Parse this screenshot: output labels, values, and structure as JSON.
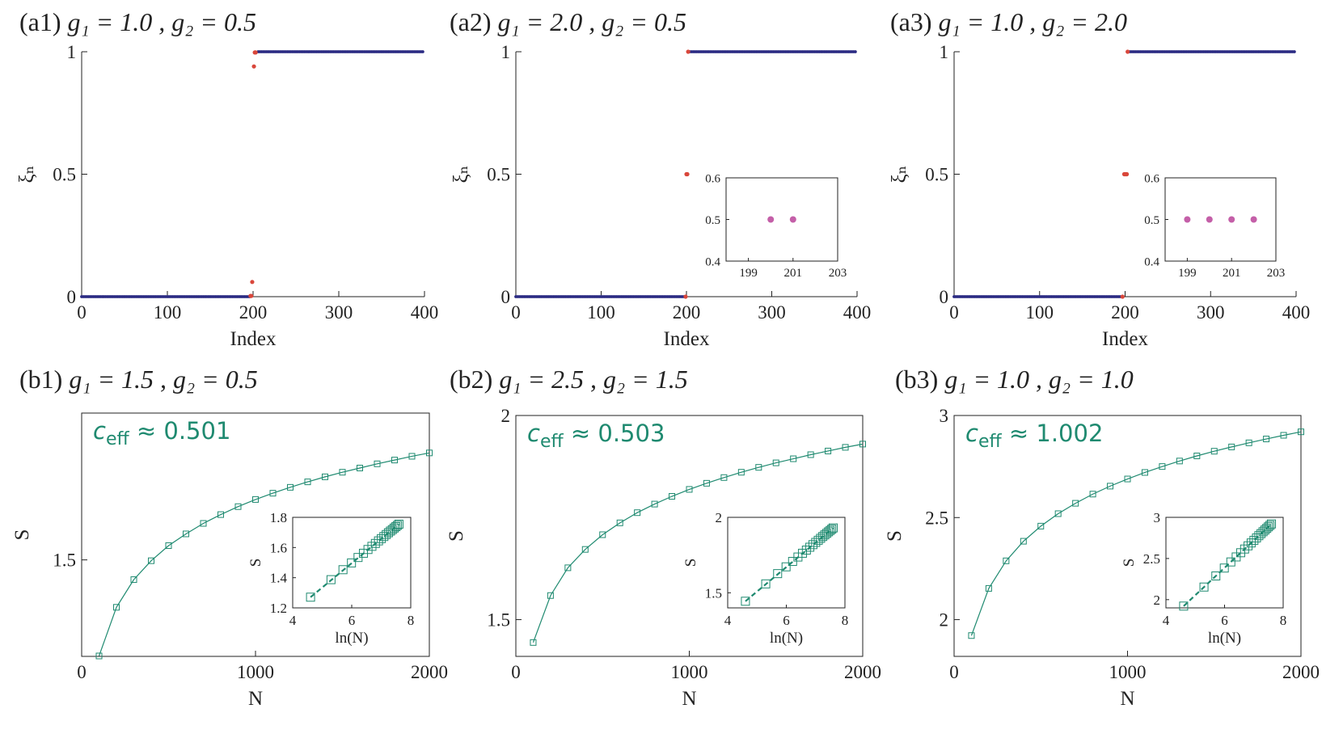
{
  "colors": {
    "blue_dots": "#2b2b83",
    "red_dots": "#d9473b",
    "pink_dots": "#c45fa8",
    "teal": "#1f8a70",
    "axis": "#222222"
  },
  "chart_data": [
    {
      "id": "a1",
      "type": "scatter",
      "panel_label": "(a1)",
      "title_prefix": "g₁ = 1.0 , g₂ = 0.5",
      "xlabel": "Index",
      "ylabel": "ξₙ",
      "xlim": [
        0,
        400
      ],
      "ylim": [
        0,
        1
      ],
      "xticks": [
        0,
        100,
        200,
        300,
        400
      ],
      "yticks": [
        0,
        0.5,
        1
      ],
      "xtick_labels": [
        "0",
        "100",
        "200",
        "300",
        "400"
      ],
      "ytick_labels": [
        "0",
        "0.5",
        "1"
      ],
      "series": [
        {
          "name": "lower",
          "color": "blue",
          "x_range": [
            0,
            196
          ],
          "step": 2,
          "y": 0
        },
        {
          "name": "upper",
          "color": "blue",
          "x_range": [
            206,
            398
          ],
          "step": 2,
          "y": 1
        }
      ],
      "special_points": [
        {
          "x": 197,
          "y": 0.003
        },
        {
          "x": 198,
          "y": 0.003
        },
        {
          "x": 199,
          "y": 0.06
        },
        {
          "x": 201,
          "y": 0.94
        },
        {
          "x": 202,
          "y": 0.997
        },
        {
          "x": 203,
          "y": 0.997
        }
      ]
    },
    {
      "id": "a2",
      "type": "scatter",
      "panel_label": "(a2)",
      "title_prefix": "g₁ = 2.0 , g₂ = 0.5",
      "xlabel": "Index",
      "ylabel": "ξₙ",
      "xlim": [
        0,
        400
      ],
      "ylim": [
        0,
        1
      ],
      "xticks": [
        0,
        100,
        200,
        300,
        400
      ],
      "yticks": [
        0,
        0.5,
        1
      ],
      "xtick_labels": [
        "0",
        "100",
        "200",
        "300",
        "400"
      ],
      "ytick_labels": [
        "0",
        "0.5",
        "1"
      ],
      "series": [
        {
          "name": "lower",
          "color": "blue",
          "x_range": [
            0,
            198
          ],
          "step": 2,
          "y": 0
        },
        {
          "name": "upper",
          "color": "blue",
          "x_range": [
            202,
            398
          ],
          "step": 2,
          "y": 1
        }
      ],
      "special_points": [
        {
          "x": 199,
          "y": 0.0
        },
        {
          "x": 200,
          "y": 0.5
        },
        {
          "x": 201,
          "y": 0.5
        },
        {
          "x": 202,
          "y": 1.0
        }
      ],
      "inset": {
        "xlim": [
          198,
          203
        ],
        "ylim": [
          0.4,
          0.6
        ],
        "xticks": [
          199,
          201,
          203
        ],
        "yticks": [
          0.4,
          0.5,
          0.6
        ],
        "xtick_labels": [
          "199",
          "201",
          "203"
        ],
        "ytick_labels": [
          "0.4",
          "0.5",
          "0.6"
        ],
        "points": [
          {
            "x": 200,
            "y": 0.5
          },
          {
            "x": 201,
            "y": 0.5
          }
        ]
      }
    },
    {
      "id": "a3",
      "type": "scatter",
      "panel_label": "(a3)",
      "title_prefix": "g₁ = 1.0 , g₂ = 2.0",
      "xlabel": "Index",
      "ylabel": "ξₙ",
      "xlim": [
        0,
        400
      ],
      "ylim": [
        0,
        1
      ],
      "xticks": [
        0,
        100,
        200,
        300,
        400
      ],
      "yticks": [
        0,
        0.5,
        1
      ],
      "xtick_labels": [
        "0",
        "100",
        "200",
        "300",
        "400"
      ],
      "ytick_labels": [
        "0",
        "0.5",
        "1"
      ],
      "series": [
        {
          "name": "lower",
          "color": "blue",
          "x_range": [
            0,
            196
          ],
          "step": 2,
          "y": 0
        },
        {
          "name": "upper",
          "color": "blue",
          "x_range": [
            204,
            398
          ],
          "step": 2,
          "y": 1
        }
      ],
      "special_points": [
        {
          "x": 197,
          "y": 0.0
        },
        {
          "x": 199,
          "y": 0.5
        },
        {
          "x": 200,
          "y": 0.5
        },
        {
          "x": 201,
          "y": 0.5
        },
        {
          "x": 202,
          "y": 0.5
        },
        {
          "x": 203,
          "y": 1.0
        }
      ],
      "inset": {
        "xlim": [
          198,
          203
        ],
        "ylim": [
          0.4,
          0.6
        ],
        "xticks": [
          199,
          201,
          203
        ],
        "yticks": [
          0.4,
          0.5,
          0.6
        ],
        "xtick_labels": [
          "199",
          "201",
          "203"
        ],
        "ytick_labels": [
          "0.4",
          "0.5",
          "0.6"
        ],
        "points": [
          {
            "x": 199,
            "y": 0.5
          },
          {
            "x": 200,
            "y": 0.5
          },
          {
            "x": 201,
            "y": 0.5
          },
          {
            "x": 202,
            "y": 0.5
          }
        ]
      }
    },
    {
      "id": "b1",
      "type": "line",
      "panel_label": "(b1)",
      "title_prefix": "g₁ = 1.5 , g₂ = 0.5",
      "xlabel": "N",
      "ylabel": "S",
      "annotation": "c_eff ≈ 0.501",
      "annotation_main": "c",
      "annotation_sub": "eff",
      "annotation_rest": " ≈ 0.501",
      "xlim": [
        0,
        2000
      ],
      "ylim": [
        1.27,
        1.85
      ],
      "xticks": [
        0,
        1000,
        2000
      ],
      "yticks": [
        1.5
      ],
      "xtick_labels": [
        "0",
        "1000",
        "2000"
      ],
      "ytick_labels": [
        "1.5"
      ],
      "x": [
        100,
        200,
        300,
        400,
        500,
        600,
        700,
        800,
        900,
        1000,
        1100,
        1200,
        1300,
        1400,
        1500,
        1600,
        1700,
        1800,
        1900,
        2000
      ],
      "y": [
        1.271,
        1.387,
        1.453,
        1.498,
        1.534,
        1.562,
        1.587,
        1.608,
        1.627,
        1.644,
        1.659,
        1.673,
        1.686,
        1.698,
        1.709,
        1.719,
        1.729,
        1.738,
        1.747,
        1.755
      ],
      "inset": {
        "xlabel": "ln(N)",
        "ylabel": "S",
        "xlim": [
          4,
          8
        ],
        "ylim": [
          1.2,
          1.8
        ],
        "xticks": [
          4,
          6,
          8
        ],
        "yticks": [
          1.2,
          1.4,
          1.6,
          1.8
        ],
        "xtick_labels": [
          "4",
          "6",
          "8"
        ],
        "ytick_labels": [
          "1.2",
          "1.4",
          "1.6",
          "1.8"
        ]
      }
    },
    {
      "id": "b2",
      "type": "line",
      "panel_label": "(b2)",
      "title_prefix": "g₁ = 2.5 , g₂ = 1.5",
      "xlabel": "N",
      "ylabel": "S",
      "annotation": "c_eff ≈ 0.503",
      "annotation_main": "c",
      "annotation_sub": "eff",
      "annotation_rest": " ≈ 0.503",
      "xlim": [
        0,
        2000
      ],
      "ylim": [
        1.41,
        2.0
      ],
      "xticks": [
        0,
        1000,
        2000
      ],
      "yticks": [
        1.5,
        2
      ],
      "xtick_labels": [
        "0",
        "1000",
        "2000"
      ],
      "ytick_labels": [
        "1.5",
        "2"
      ],
      "x": [
        100,
        200,
        300,
        400,
        500,
        600,
        700,
        800,
        900,
        1000,
        1100,
        1200,
        1300,
        1400,
        1500,
        1600,
        1700,
        1800,
        1900,
        2000
      ],
      "y": [
        1.444,
        1.559,
        1.627,
        1.672,
        1.708,
        1.737,
        1.762,
        1.783,
        1.802,
        1.819,
        1.834,
        1.848,
        1.861,
        1.873,
        1.884,
        1.894,
        1.904,
        1.913,
        1.922,
        1.93
      ],
      "inset": {
        "xlabel": "ln(N)",
        "ylabel": "S",
        "xlim": [
          4,
          8
        ],
        "ylim": [
          1.4,
          2.0
        ],
        "xticks": [
          4,
          6,
          8
        ],
        "yticks": [
          1.5,
          2
        ],
        "xtick_labels": [
          "4",
          "6",
          "8"
        ],
        "ytick_labels": [
          "1.5",
          "2"
        ]
      }
    },
    {
      "id": "b3",
      "type": "line",
      "panel_label": "(b3)",
      "title_prefix": "g₁ = 1.0 , g₂ = 1.0",
      "xlabel": "N",
      "ylabel": "S",
      "annotation": "c_eff ≈ 1.002",
      "annotation_main": "c",
      "annotation_sub": "eff",
      "annotation_rest": " ≈ 1.002",
      "xlim": [
        0,
        2000
      ],
      "ylim": [
        1.82,
        3.0
      ],
      "xticks": [
        0,
        1000,
        2000
      ],
      "yticks": [
        2,
        2.5,
        3
      ],
      "xtick_labels": [
        "0",
        "1000",
        "2000"
      ],
      "ytick_labels": [
        "2",
        "2.5",
        "3"
      ],
      "x": [
        100,
        200,
        300,
        400,
        500,
        600,
        700,
        800,
        900,
        1000,
        1100,
        1200,
        1300,
        1400,
        1500,
        1600,
        1700,
        1800,
        1900,
        2000
      ],
      "y": [
        1.922,
        2.153,
        2.288,
        2.384,
        2.458,
        2.519,
        2.57,
        2.615,
        2.654,
        2.689,
        2.721,
        2.75,
        2.777,
        2.802,
        2.825,
        2.846,
        2.866,
        2.885,
        2.903,
        2.92
      ],
      "inset": {
        "xlabel": "ln(N)",
        "ylabel": "S",
        "xlim": [
          4,
          8
        ],
        "ylim": [
          1.9,
          3.0
        ],
        "xticks": [
          4,
          6,
          8
        ],
        "yticks": [
          2,
          2.5,
          3
        ],
        "xtick_labels": [
          "4",
          "6",
          "8"
        ],
        "ytick_labels": [
          "2",
          "2.5",
          "3"
        ]
      }
    }
  ]
}
